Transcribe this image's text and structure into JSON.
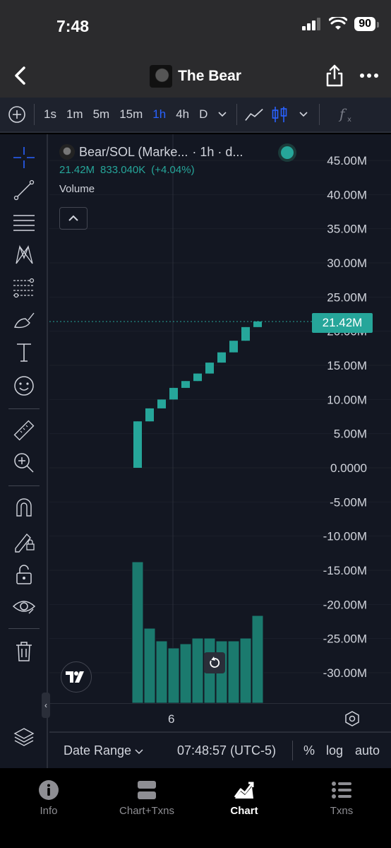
{
  "status": {
    "time": "7:48",
    "battery": "90"
  },
  "nav": {
    "title": "The Bear"
  },
  "toolbar": {
    "intervals": [
      "1s",
      "1m",
      "5m",
      "15m",
      "1h",
      "4h",
      "D"
    ],
    "active_interval": "1h"
  },
  "legend": {
    "symbol": "Bear/SOL (Marke...",
    "interval": "· 1h · d...",
    "price": "21.42M",
    "change": "833.040K",
    "change_pct": "(+4.04%)",
    "volume_label": "Volume"
  },
  "price_axis": {
    "ticks": [
      "45.00M",
      "40.00M",
      "35.00M",
      "30.00M",
      "25.00M",
      "20.00M",
      "15.00M",
      "10.00M",
      "5.00M",
      "0.0000",
      "-5.00M",
      "-10.00M",
      "-15.00M",
      "-20.00M",
      "-25.00M",
      "-30.00M"
    ],
    "last_price_label": "21.42M"
  },
  "time_axis": {
    "label": "6"
  },
  "bottom_bar": {
    "date_range": "Date Range",
    "clock": "07:48:57 (UTC-5)",
    "percent": "%",
    "log": "log",
    "auto": "auto"
  },
  "colors": {
    "up": "#26a69a",
    "volume": "#1b7a6e",
    "background": "#131722",
    "accent": "#2962ff"
  },
  "chart_data": {
    "type": "candlestick",
    "y_unit": "M",
    "ylim": [
      -32.5,
      47.5
    ],
    "last_price": 21.42,
    "candles": [
      {
        "open": 0.0,
        "high": 6.8,
        "low": 0.0,
        "close": 6.8
      },
      {
        "open": 6.8,
        "high": 8.7,
        "low": 6.8,
        "close": 8.7
      },
      {
        "open": 8.7,
        "high": 10.0,
        "low": 8.7,
        "close": 10.0
      },
      {
        "open": 10.0,
        "high": 11.7,
        "low": 10.0,
        "close": 11.7
      },
      {
        "open": 11.7,
        "high": 12.7,
        "low": 11.7,
        "close": 12.7
      },
      {
        "open": 12.7,
        "high": 13.8,
        "low": 12.7,
        "close": 13.8
      },
      {
        "open": 13.8,
        "high": 15.4,
        "low": 13.8,
        "close": 15.4
      },
      {
        "open": 15.4,
        "high": 16.9,
        "low": 15.4,
        "close": 16.9
      },
      {
        "open": 16.9,
        "high": 18.6,
        "low": 16.9,
        "close": 18.6
      },
      {
        "open": 18.6,
        "high": 20.6,
        "low": 18.6,
        "close": 20.6
      },
      {
        "open": 20.6,
        "high": 21.5,
        "low": 20.6,
        "close": 21.42
      }
    ],
    "volume": [
      1.0,
      0.53,
      0.44,
      0.39,
      0.42,
      0.46,
      0.46,
      0.44,
      0.44,
      0.46,
      0.62
    ]
  }
}
